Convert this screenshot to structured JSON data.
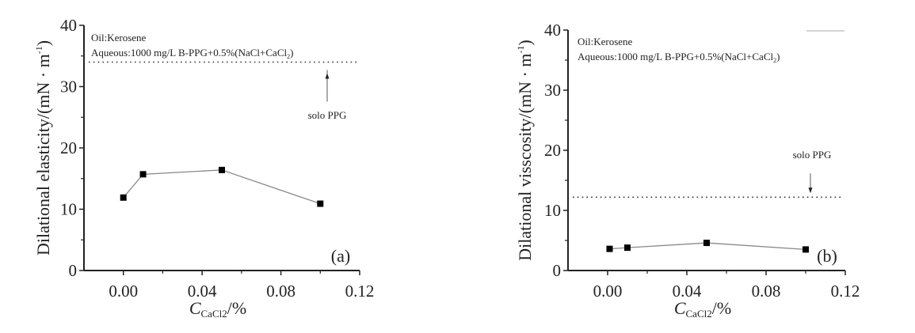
{
  "chart_data": [
    {
      "type": "line",
      "panel_label": "(a)",
      "xlabel_main": "C",
      "xlabel_sub": "CaCl2",
      "xlabel_suffix": "/%",
      "ylabel": "Dilational elasticity/(mN · m",
      "ylabel_sup": "-1",
      "ylabel_close": ")",
      "xlim": [
        -0.02,
        0.12
      ],
      "ylim": [
        0,
        40
      ],
      "xticks": [
        "0.00",
        "0.04",
        "0.08",
        "0.12"
      ],
      "yticks": [
        "0",
        "10",
        "20",
        "30",
        "40"
      ],
      "annotation_line1": "Oil:Kerosene",
      "annotation_line2": "Aqueous:1000 mg/L B-PPG+0.5%(NaCl+CaCl",
      "annotation_sub": "2",
      "annotation_close": ")",
      "reference": {
        "label": "solo PPG",
        "value": 34,
        "style": "dotted",
        "arrow": "up"
      },
      "x": [
        0.0,
        0.01,
        0.05,
        0.1
      ],
      "y": [
        11.9,
        15.7,
        16.4,
        10.9
      ],
      "marker": "square",
      "colors": {
        "line": "#888888",
        "marker": "#000000"
      }
    },
    {
      "type": "line",
      "panel_label": "(b)",
      "xlabel_main": "C",
      "xlabel_sub": "CaCl2",
      "xlabel_suffix": "/%",
      "ylabel": "Dilational visscosity/(mN · m",
      "ylabel_sup": "-1",
      "ylabel_close": ")",
      "xlim": [
        -0.02,
        0.12
      ],
      "ylim": [
        0,
        40
      ],
      "xticks": [
        "0.00",
        "0.04",
        "0.08",
        "0.12"
      ],
      "yticks": [
        "0",
        "10",
        "20",
        "30",
        "40"
      ],
      "annotation_line1": "Oil:Kerosene",
      "annotation_line2": "Aqueous:1000 mg/L B-PPG+0.5%(NaCl+CaCl",
      "annotation_sub": "2",
      "annotation_close": ")",
      "reference": {
        "label": "solo PPG",
        "value": 12.2,
        "style": "dotted",
        "arrow": "down"
      },
      "x": [
        0.001,
        0.01,
        0.05,
        0.1
      ],
      "y": [
        3.6,
        3.8,
        4.6,
        3.5
      ],
      "marker": "square",
      "colors": {
        "line": "#888888",
        "marker": "#000000"
      }
    }
  ]
}
